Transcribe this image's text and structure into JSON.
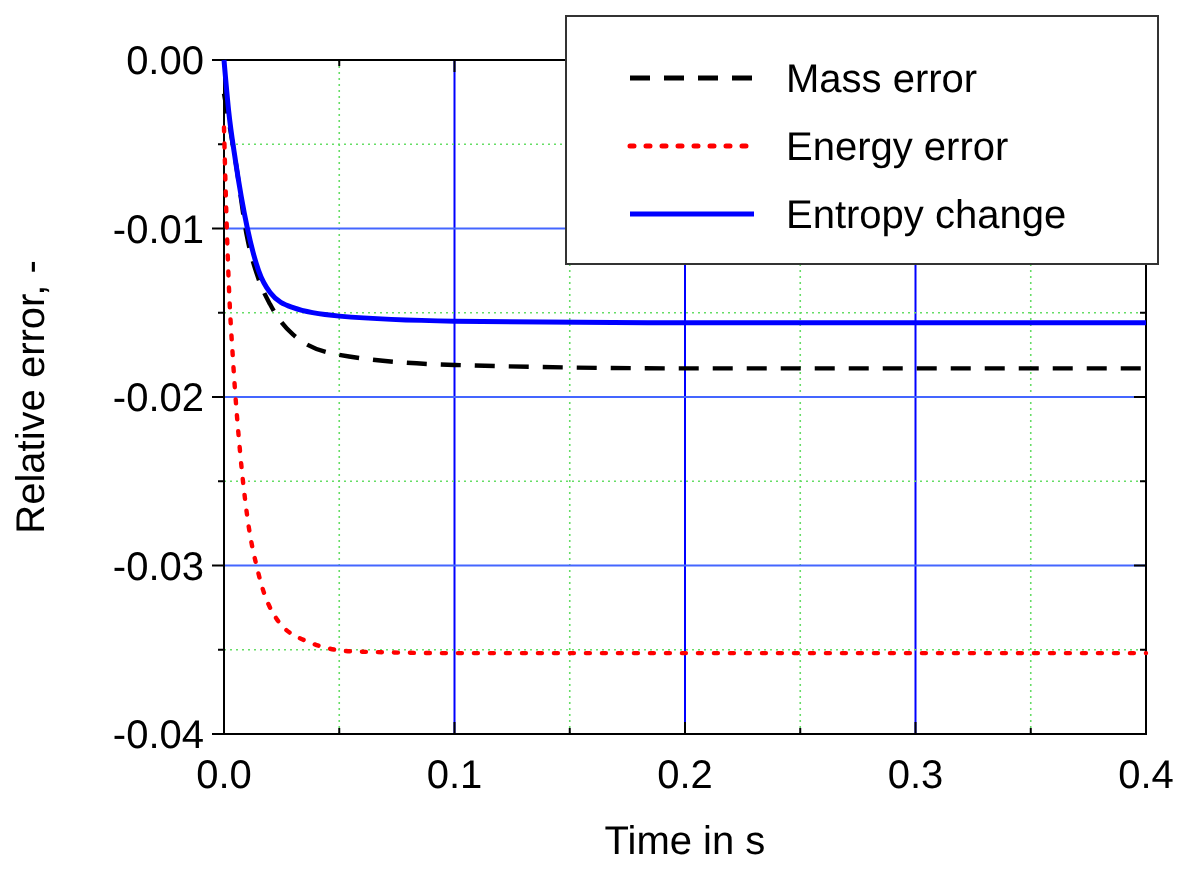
{
  "chart_data": {
    "type": "line",
    "xlabel": "Time in s",
    "ylabel": "Relative error, -",
    "xlim": [
      0,
      0.4
    ],
    "ylim": [
      -0.04,
      0
    ],
    "xticks": [
      {
        "value": 0,
        "label": "0.0"
      },
      {
        "value": 0.05,
        "label": null
      },
      {
        "value": 0.1,
        "label": "0.1"
      },
      {
        "value": 0.15,
        "label": null
      },
      {
        "value": 0.2,
        "label": "0.2"
      },
      {
        "value": 0.25,
        "label": null
      },
      {
        "value": 0.3,
        "label": "0.3"
      },
      {
        "value": 0.35,
        "label": null
      },
      {
        "value": 0.4,
        "label": "0.4"
      }
    ],
    "yticks": [
      {
        "value": -0.04,
        "label": "-0.04"
      },
      {
        "value": -0.035,
        "label": null
      },
      {
        "value": -0.03,
        "label": "-0.03"
      },
      {
        "value": -0.025,
        "label": null
      },
      {
        "value": -0.02,
        "label": "-0.02"
      },
      {
        "value": -0.015,
        "label": null
      },
      {
        "value": -0.01,
        "label": "-0.01"
      },
      {
        "value": -0.005,
        "label": null
      },
      {
        "value": 0,
        "label": "0.00"
      }
    ],
    "grid": true,
    "legend": "top right",
    "marker": "none",
    "series": [
      {
        "name": "Mass error",
        "color": "#000000",
        "line_style": "dashed",
        "x": [
          0,
          0.005,
          0.01,
          0.015,
          0.02,
          0.03,
          0.05,
          0.1,
          0.2,
          0.4
        ],
        "values": [
          -0.002,
          -0.006,
          -0.0105,
          -0.013,
          -0.0145,
          -0.0163,
          -0.0175,
          -0.0181,
          -0.0183,
          -0.0183
        ]
      },
      {
        "name": "Energy error",
        "color": "#ff0000",
        "line_style": "dotted",
        "x": [
          0,
          0.001,
          0.002,
          0.004,
          0.007,
          0.01,
          0.015,
          0.023,
          0.036,
          0.056,
          0.1,
          0.4
        ],
        "values": [
          -0.004,
          -0.009,
          -0.013,
          -0.018,
          -0.0233,
          -0.027,
          -0.0305,
          -0.0332,
          -0.0345,
          -0.0351,
          -0.0352,
          -0.0352
        ]
      },
      {
        "name": "Entropy change",
        "color": "#0000ff",
        "line_style": "solid",
        "x": [
          0,
          0.002,
          0.005,
          0.01,
          0.015,
          0.02,
          0.03,
          0.05,
          0.1,
          0.2,
          0.4
        ],
        "values": [
          0,
          -0.003,
          -0.006,
          -0.0099,
          -0.0125,
          -0.0138,
          -0.0147,
          -0.0152,
          -0.0155,
          -0.0156,
          -0.0156
        ]
      }
    ]
  }
}
